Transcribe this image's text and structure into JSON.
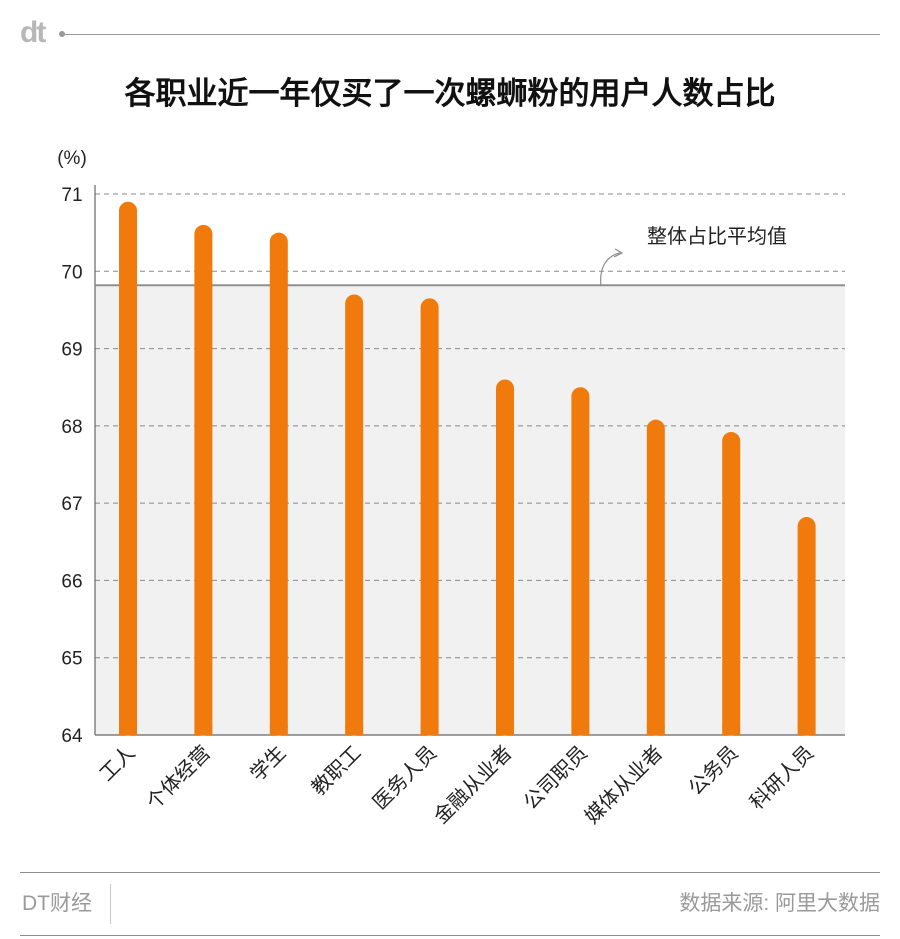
{
  "header": {
    "logo_text": "dt"
  },
  "chart_data": {
    "type": "bar",
    "title": "各职业近一年仅买了一次螺蛳粉的用户人数占比",
    "unit_label": "(%)",
    "categories": [
      "工人",
      "个体经营",
      "学生",
      "教职工",
      "医务人员",
      "金融从业者",
      "公司职员",
      "媒体从业者",
      "公务员",
      "科研人员"
    ],
    "values": [
      70.9,
      70.6,
      70.5,
      69.7,
      69.65,
      68.6,
      68.5,
      68.08,
      67.92,
      66.82
    ],
    "ylim": [
      64,
      71
    ],
    "yticks": [
      64,
      65,
      66,
      67,
      68,
      69,
      70,
      71
    ],
    "xlabel": "",
    "ylabel": "(%)",
    "reference_line": {
      "label": "整体占比平均值",
      "value": 69.82
    },
    "colors": {
      "bar": "#f07a0c",
      "average_line": "#8f8f8f",
      "grid": "#8a8a8a",
      "plot_shade": "#f1f1f1",
      "axis": "#666666",
      "text": "#222222"
    }
  },
  "footer": {
    "brand": "DT财经",
    "source": "数据来源: 阿里大数据"
  }
}
